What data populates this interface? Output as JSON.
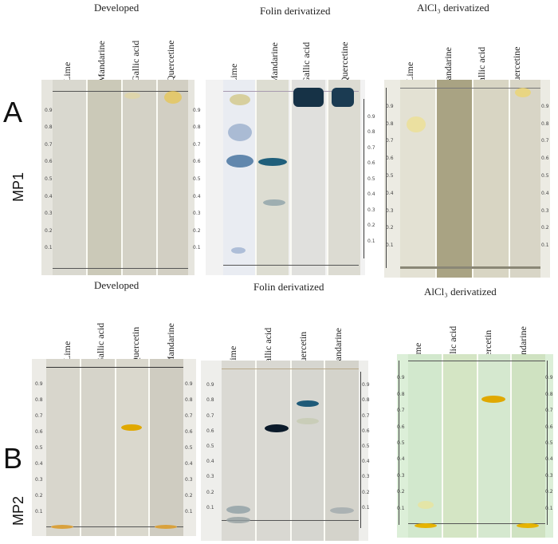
{
  "rows": [
    {
      "letter": "A",
      "phase": "MP1",
      "panels": [
        {
          "title": "Developed",
          "lanes": [
            "Lime",
            "Mandarine",
            "Gallic acid",
            "Quercetine"
          ]
        },
        {
          "title": "Folin derivatized",
          "lanes": [
            "Lime",
            "Mandarine",
            "Gallic acid",
            "Quercetine"
          ]
        },
        {
          "title": "AlCl₃ derivatized",
          "lanes": [
            "Lime",
            "Mandarine",
            "Gallic acid",
            "Quercetine"
          ]
        }
      ]
    },
    {
      "letter": "B",
      "phase": "MP2",
      "panels": [
        {
          "title": "Developed",
          "lanes": [
            "Lime",
            "Gallic acid",
            "Quercetin",
            "Mandarine"
          ]
        },
        {
          "title": "Folin derivatized",
          "lanes": [
            "Lime",
            "Gallic acid",
            "Quercetin",
            "Mandarine"
          ]
        },
        {
          "title": "AlCl₃ derivatized",
          "lanes": [
            "Lime",
            "Gallic acid",
            "Quercetin",
            "Mandarine"
          ]
        }
      ]
    }
  ],
  "rf_ticks": [
    "0.1",
    "0.2",
    "0.3",
    "0.4",
    "0.5",
    "0.6",
    "0.7",
    "0.8",
    "0.9"
  ],
  "colors": {
    "developed_plate": "#d9d7cc",
    "folin_plate": "#d8dadd",
    "alcl3_plate_mp1": "#d4d2c0",
    "alcl3_plate_mp2": "#cfe5c7",
    "quercetin_yellow": "#e0a800",
    "folin_blue": "#1e5a78"
  },
  "spots": {
    "mp1_developed_quercetine_front_rf": 0.97,
    "mp1_folin_lime_rf": [
      0.97,
      0.76,
      0.6,
      0.08
    ],
    "mp1_folin_mandarine_rf": [
      0.59,
      0.36
    ],
    "mp1_folin_gallic_rf": 0.93,
    "mp1_folin_quercetine_rf": 0.93,
    "mp1_alcl3_lime_rf": 0.79,
    "mp2_developed_quercetin_rf": 0.62,
    "mp2_folin_gallic_rf": 0.62,
    "mp2_folin_quercetin_rf": [
      0.79,
      0.66
    ],
    "mp2_alcl3_quercetin_rf": 0.79,
    "mp2_base_yellow_lanes": [
      "Lime",
      "Mandarine"
    ]
  }
}
